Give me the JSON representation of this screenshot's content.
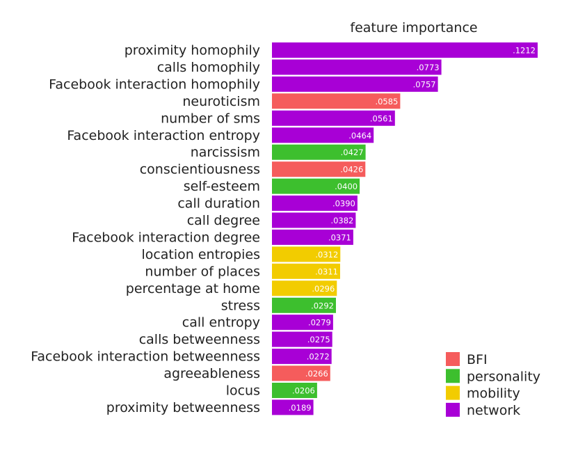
{
  "chart_data": {
    "type": "bar",
    "orientation": "horizontal",
    "title": "feature importance",
    "categories": [
      "proximity homophily",
      "calls homophily",
      "Facebook interaction homophily",
      "neuroticism",
      "number of sms",
      "Facebook interaction entropy",
      "narcissism",
      "conscientiousness",
      "self-esteem",
      "call duration",
      "call degree",
      "Facebook interaction degree",
      "location entropies",
      "number of places",
      "percentage at home",
      "stress",
      "call entropy",
      "calls betweenness",
      "Facebook interaction betweenness",
      "agreeableness",
      "locus",
      "proximity betweenness"
    ],
    "values": [
      0.1212,
      0.0773,
      0.0757,
      0.0585,
      0.0561,
      0.0464,
      0.0427,
      0.0426,
      0.04,
      0.039,
      0.0382,
      0.0371,
      0.0312,
      0.0311,
      0.0296,
      0.0292,
      0.0279,
      0.0275,
      0.0272,
      0.0266,
      0.0206,
      0.0189
    ],
    "value_labels": [
      ".1212",
      ".0773",
      ".0757",
      ".0585",
      ".0561",
      ".0464",
      ".0427",
      ".0426",
      ".0400",
      ".0390",
      ".0382",
      ".0371",
      ".0312",
      ".0311",
      ".0296",
      ".0292",
      ".0279",
      ".0275",
      ".0272",
      ".0266",
      ".0206",
      ".0189"
    ],
    "groups": [
      "network",
      "network",
      "network",
      "BFI",
      "network",
      "network",
      "personality",
      "BFI",
      "personality",
      "network",
      "network",
      "network",
      "mobility",
      "mobility",
      "mobility",
      "personality",
      "network",
      "network",
      "network",
      "BFI",
      "personality",
      "network"
    ],
    "legend": [
      {
        "name": "BFI",
        "color": "#f55c5c"
      },
      {
        "name": "personality",
        "color": "#3dbf2e"
      },
      {
        "name": "mobility",
        "color": "#f2cc00"
      },
      {
        "name": "network",
        "color": "#a800d6"
      }
    ],
    "legend_position": "bottom-right",
    "grid": false,
    "xlim": [
      0,
      0.1212
    ]
  }
}
